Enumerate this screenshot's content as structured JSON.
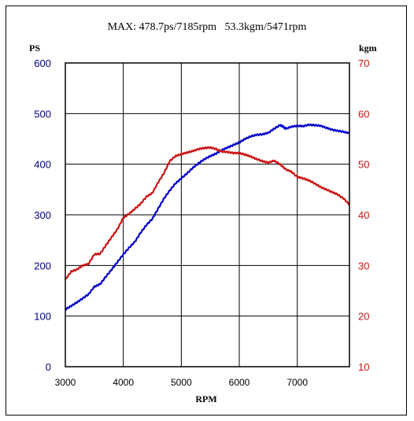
{
  "chart_data": {
    "type": "line",
    "title": "MAX: 478.7ps/7185rpm   53.3kgm/5471rpm",
    "xlabel": "RPM",
    "ylabel_left": "PS",
    "ylabel_right": "kgm",
    "xlim": [
      3000,
      7900
    ],
    "ylim_left": [
      0,
      600
    ],
    "ylim_right": [
      10,
      70
    ],
    "x_ticks": [
      3000,
      4000,
      5000,
      6000,
      7000
    ],
    "y_left_ticks": [
      0,
      100,
      200,
      300,
      400,
      500,
      600
    ],
    "y_right_ticks": [
      10,
      20,
      30,
      40,
      50,
      60,
      70
    ],
    "grid": true,
    "colors": {
      "power": "#0000cc",
      "torque": "#cc1111",
      "axis_left_text": "#000080",
      "axis_right_text": "#cc1111"
    },
    "series": [
      {
        "axis": "left",
        "color": "#0000cc",
        "x": [
          3000,
          3100,
          3200,
          3300,
          3400,
          3500,
          3600,
          3700,
          3800,
          3900,
          4000,
          4100,
          4200,
          4300,
          4400,
          4500,
          4600,
          4700,
          4800,
          4900,
          5000,
          5100,
          5200,
          5300,
          5400,
          5500,
          5600,
          5700,
          5800,
          5900,
          6000,
          6100,
          6200,
          6300,
          6400,
          6500,
          6600,
          6700,
          6750,
          6800,
          6900,
          7000,
          7100,
          7200,
          7300,
          7400,
          7500,
          7600,
          7700,
          7800,
          7900
        ],
        "values": [
          113,
          120,
          127,
          135,
          143,
          158,
          163,
          178,
          192,
          207,
          222,
          235,
          247,
          265,
          280,
          292,
          312,
          332,
          348,
          362,
          372,
          382,
          393,
          402,
          410,
          416,
          421,
          428,
          433,
          438,
          443,
          450,
          455,
          458,
          459,
          462,
          470,
          477,
          475,
          470,
          474,
          476,
          475,
          478,
          477,
          476,
          472,
          468,
          466,
          464,
          461
        ]
      },
      {
        "axis": "right",
        "color": "#cc1111",
        "x": [
          3000,
          3100,
          3200,
          3300,
          3400,
          3500,
          3600,
          3700,
          3800,
          3900,
          4000,
          4100,
          4200,
          4300,
          4400,
          4500,
          4600,
          4700,
          4800,
          4900,
          5000,
          5100,
          5200,
          5300,
          5400,
          5500,
          5600,
          5700,
          5800,
          5900,
          6000,
          6100,
          6200,
          6300,
          6400,
          6500,
          6600,
          6700,
          6800,
          6900,
          7000,
          7100,
          7200,
          7300,
          7400,
          7500,
          7600,
          7700,
          7800,
          7900
        ],
        "values": [
          27.2,
          28.8,
          29.2,
          30.0,
          30.3,
          32.2,
          32.3,
          34.0,
          35.6,
          37.2,
          39.4,
          40.2,
          41.2,
          42.2,
          43.6,
          44.3,
          46.4,
          48.2,
          50.6,
          51.6,
          52.0,
          52.3,
          52.6,
          53.0,
          53.2,
          53.3,
          53.0,
          52.5,
          52.4,
          52.2,
          52.2,
          51.9,
          51.5,
          51.0,
          50.6,
          50.3,
          50.7,
          50.0,
          49.0,
          48.5,
          47.5,
          47.2,
          46.8,
          46.2,
          45.5,
          45.0,
          44.5,
          44.0,
          43.2,
          42.0
        ]
      }
    ]
  }
}
